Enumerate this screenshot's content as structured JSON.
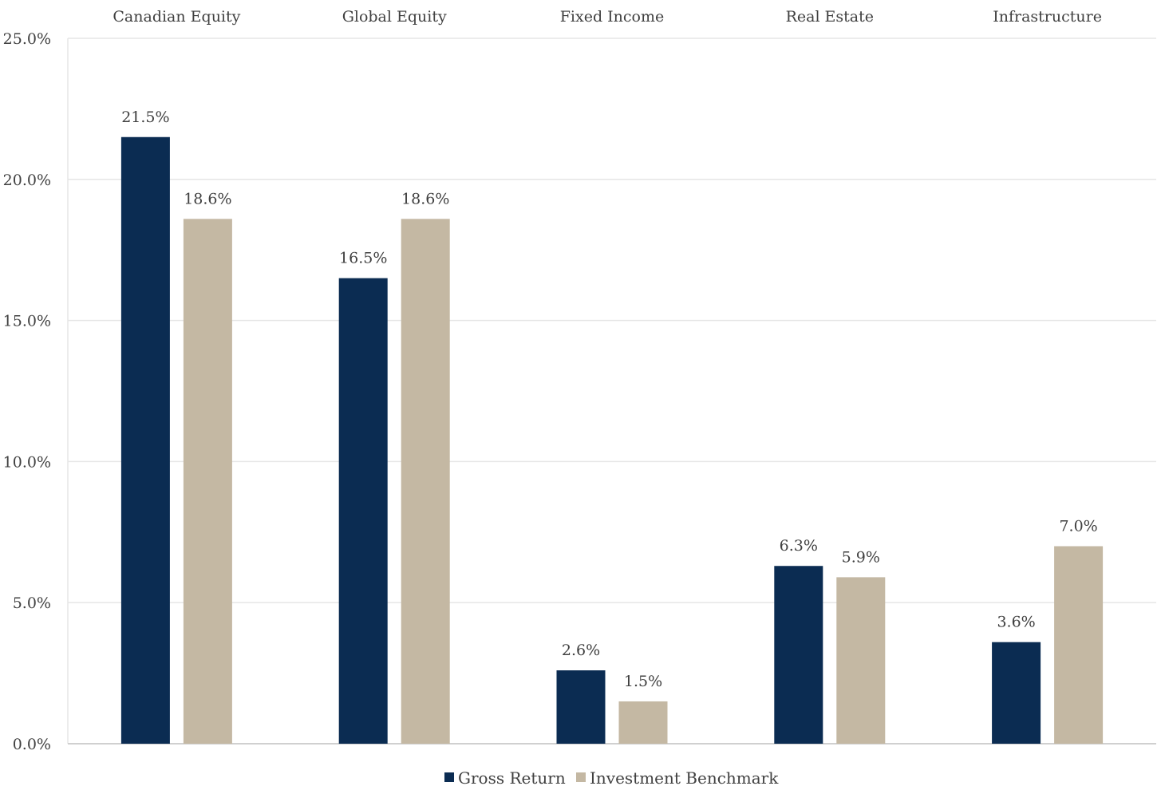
{
  "chart_data": {
    "type": "bar",
    "categories": [
      "Canadian Equity",
      "Global Equity",
      "Fixed Income",
      "Real Estate",
      "Infrastructure"
    ],
    "series": [
      {
        "name": "Gross Return",
        "values": [
          21.5,
          16.5,
          2.6,
          6.3,
          3.6
        ],
        "color": "#0b2c52"
      },
      {
        "name": "Investment Benchmark",
        "values": [
          18.6,
          18.6,
          1.5,
          5.9,
          7.0
        ],
        "color": "#c4b8a3"
      }
    ],
    "data_labels": [
      [
        "21.5%",
        "16.5%",
        "2.6%",
        "6.3%",
        "3.6%"
      ],
      [
        "18.6%",
        "18.6%",
        "1.5%",
        "5.9%",
        "7.0%"
      ]
    ],
    "yticks": [
      0,
      5,
      10,
      15,
      20,
      25
    ],
    "ytick_labels": [
      "0.0%",
      "5.0%",
      "10.0%",
      "15.0%",
      "20.0%",
      "25.0%"
    ],
    "ylim": [
      0,
      25
    ],
    "category_axis_position": "top",
    "grid": true,
    "legend": "bottom",
    "title": "",
    "xlabel": "",
    "ylabel": ""
  }
}
